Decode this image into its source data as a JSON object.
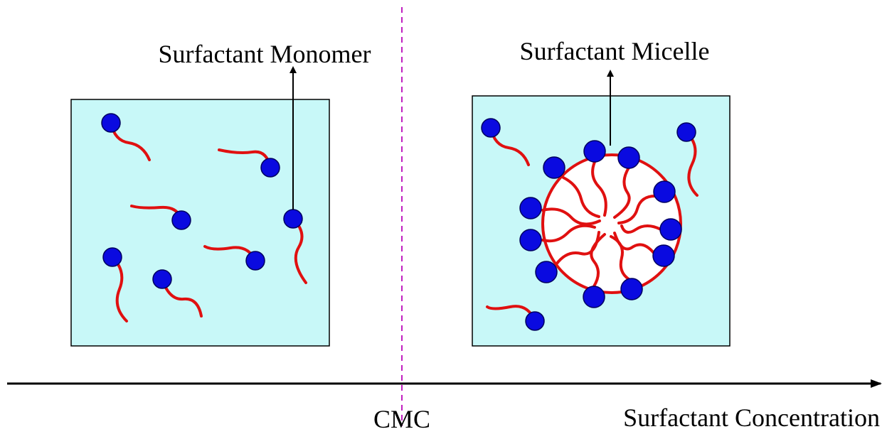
{
  "labels": {
    "monomer": "Surfactant Monomer",
    "micelle": "Surfactant Micelle",
    "cmc": "CMC",
    "axis": "Surfactant Concentration"
  }
}
